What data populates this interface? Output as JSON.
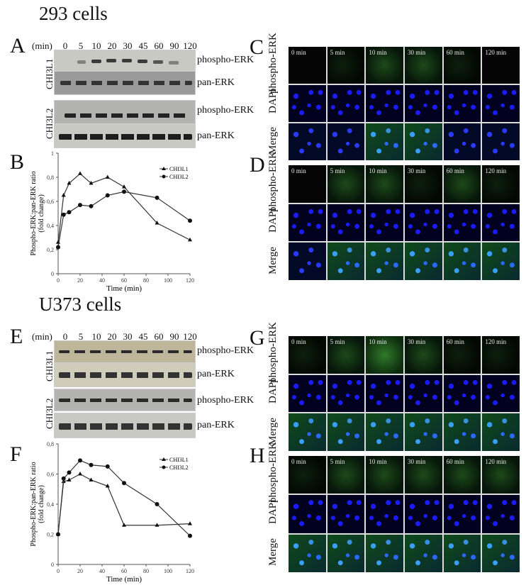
{
  "sections": [
    {
      "title": "293 cells"
    },
    {
      "title": "U373 cells"
    }
  ],
  "panels": {
    "A": {
      "letter": "A",
      "min_label": "(min)",
      "times": [
        "0",
        "5",
        "10",
        "20",
        "30",
        "45",
        "60",
        "90",
        "120"
      ],
      "groups": [
        {
          "label": "CHI3L1",
          "rows": [
            "phospho-ERK",
            "pan-ERK"
          ]
        },
        {
          "label": "CHI3L2",
          "rows": [
            "phospho-ERK",
            "pan-ERK"
          ]
        }
      ]
    },
    "B": {
      "letter": "B"
    },
    "C": {
      "letter": "C",
      "row_labels": [
        "phospho-ERK",
        "DAPI",
        "Merge"
      ],
      "timepoints": [
        "0 min",
        "5 min",
        "10 min",
        "30 min",
        "60 min",
        "120 min"
      ]
    },
    "D": {
      "letter": "D",
      "row_labels": [
        "phospho-ERK",
        "DAPI",
        "Merge"
      ],
      "timepoints": [
        "0 min",
        "5 min",
        "10 min",
        "30 min",
        "60 min",
        "120 min"
      ]
    },
    "E": {
      "letter": "E",
      "min_label": "(min)",
      "times": [
        "0",
        "5",
        "10",
        "20",
        "30",
        "45",
        "60",
        "90",
        "120"
      ],
      "groups": [
        {
          "label": "CHI3L1",
          "rows": [
            "phospho-ERK",
            "pan-ERK"
          ]
        },
        {
          "label": "CHI3L2",
          "rows": [
            "phospho-ERK",
            "pan-ERK"
          ]
        }
      ]
    },
    "F": {
      "letter": "F"
    },
    "G": {
      "letter": "G",
      "row_labels": [
        "phospho-ERK",
        "DAPI",
        "Merge"
      ],
      "timepoints": [
        "0 min",
        "5 min",
        "10 min",
        "30 min",
        "60 min",
        "120 min"
      ]
    },
    "H": {
      "letter": "H",
      "row_labels": [
        "phospho-ERK",
        "DAPI",
        "Merge"
      ],
      "timepoints": [
        "0 min",
        "5 min",
        "10 min",
        "30 min",
        "60 min",
        "120 min"
      ]
    }
  },
  "chart_data": [
    {
      "panel": "B",
      "type": "line",
      "title": "",
      "xlabel": "Time (min)",
      "ylabel": "Phospho-ERK:pan-ERK ratio (fold change)",
      "x": [
        0,
        5,
        10,
        20,
        30,
        45,
        60,
        90,
        120
      ],
      "xticks": [
        "0",
        "20",
        "40",
        "60",
        "80",
        "100",
        "120"
      ],
      "yticks": [
        "0",
        "0,2",
        "0,4",
        "0,6",
        "0,8",
        "1"
      ],
      "xlim": [
        0,
        120
      ],
      "ylim": [
        0,
        1
      ],
      "grid": false,
      "legend_position": "top-right",
      "series": [
        {
          "name": "CHI3L1",
          "marker": "triangle",
          "values": [
            0.26,
            0.65,
            0.75,
            0.83,
            0.75,
            0.8,
            0.72,
            0.42,
            0.28
          ]
        },
        {
          "name": "CHI3L2",
          "marker": "circle",
          "values": [
            0.22,
            0.49,
            0.51,
            0.57,
            0.56,
            0.65,
            0.68,
            0.63,
            0.44
          ]
        }
      ]
    },
    {
      "panel": "F",
      "type": "line",
      "title": "",
      "xlabel": "Time (min)",
      "ylabel": "Phospho-ERK:pan-ERK ratio (fold change)",
      "x": [
        0,
        5,
        10,
        20,
        30,
        45,
        60,
        90,
        120
      ],
      "xticks": [
        "0",
        "20",
        "40",
        "60",
        "80",
        "100",
        "120"
      ],
      "yticks": [
        "0",
        "0,2",
        "0,4",
        "0,6",
        "0,8"
      ],
      "xlim": [
        0,
        120
      ],
      "ylim": [
        0,
        0.8
      ],
      "grid": false,
      "legend_position": "top-right",
      "series": [
        {
          "name": "CHI3L1",
          "marker": "triangle",
          "values": [
            0.2,
            0.55,
            0.56,
            0.6,
            0.56,
            0.52,
            0.26,
            0.26,
            0.27
          ]
        },
        {
          "name": "CHI3L2",
          "marker": "circle",
          "values": [
            0.2,
            0.57,
            0.61,
            0.69,
            0.66,
            0.65,
            0.54,
            0.4,
            0.19
          ]
        }
      ]
    }
  ]
}
